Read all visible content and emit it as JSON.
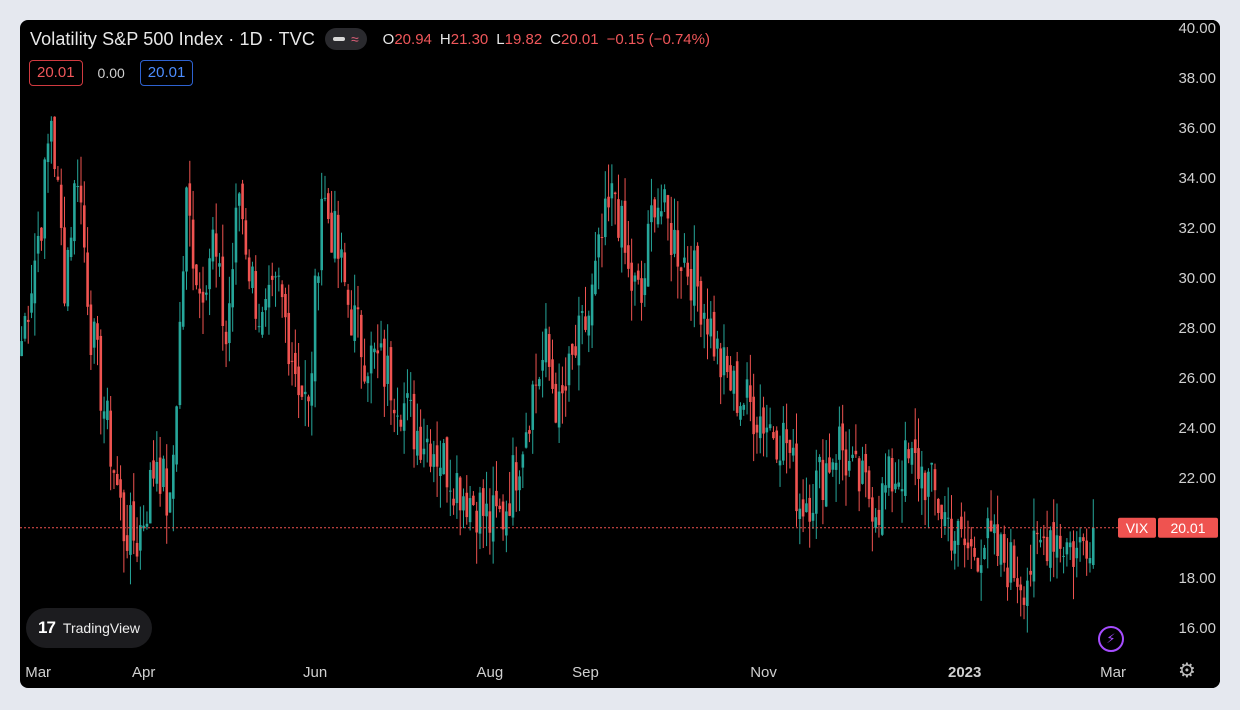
{
  "header": {
    "title": "Volatility S&P 500 Index · 1D · TVC",
    "ohlc": {
      "o_label": "O",
      "o_value": "20.94",
      "h_label": "H",
      "h_value": "21.30",
      "l_label": "L",
      "l_value": "19.82",
      "c_label": "C",
      "c_value": "20.01",
      "change": "−0.15 (−0.74%)"
    }
  },
  "badges": {
    "price": "20.01",
    "zero": "0.00",
    "value": "20.01"
  },
  "branding": {
    "logo_mark": "17",
    "logo_text": "TradingView"
  },
  "price_tag": {
    "symbol": "VIX",
    "value": "20.01"
  },
  "colors": {
    "up": "#26a69a",
    "down": "#ef5350",
    "background": "#000000",
    "grid_text": "#d0d0d0"
  },
  "chart_data": {
    "type": "candlestick",
    "title": "Volatility S&P 500 Index · 1D · TVC",
    "ylim": [
      15,
      40
    ],
    "yticks": [
      "40.00",
      "38.00",
      "36.00",
      "34.00",
      "32.00",
      "30.00",
      "28.00",
      "26.00",
      "24.00",
      "22.00",
      "20.00",
      "18.00",
      "16.00"
    ],
    "ytick_values": [
      40,
      38,
      36,
      34,
      32,
      30,
      28,
      26,
      24,
      22,
      20,
      18,
      16
    ],
    "xtick_labels": [
      "Mar",
      "Apr",
      "Jun",
      "Aug",
      "Sep",
      "Nov",
      "2023",
      "Mar"
    ],
    "xtick_index": [
      5,
      37,
      89,
      142,
      171,
      225,
      286,
      331
    ],
    "last_price": 20.01,
    "series_name": "VIX",
    "points": [
      [
        0,
        27.5
      ],
      [
        6,
        32.5
      ],
      [
        9,
        36.5
      ],
      [
        13,
        30.0
      ],
      [
        17,
        34.5
      ],
      [
        21,
        28.0
      ],
      [
        26,
        24.0
      ],
      [
        31,
        20.0
      ],
      [
        35,
        19.5
      ],
      [
        38,
        21.0
      ],
      [
        41,
        23.0
      ],
      [
        45,
        20.5
      ],
      [
        50,
        33.0
      ],
      [
        54,
        29.5
      ],
      [
        58,
        31.5
      ],
      [
        62,
        27.5
      ],
      [
        66,
        33.5
      ],
      [
        69,
        30.5
      ],
      [
        73,
        28.0
      ],
      [
        78,
        29.5
      ],
      [
        83,
        26.5
      ],
      [
        87,
        24.5
      ],
      [
        91,
        33.5
      ],
      [
        95,
        31.5
      ],
      [
        99,
        29.0
      ],
      [
        104,
        27.0
      ],
      [
        109,
        26.5
      ],
      [
        114,
        25.5
      ],
      [
        119,
        24.0
      ],
      [
        124,
        23.5
      ],
      [
        129,
        22.5
      ],
      [
        134,
        21.5
      ],
      [
        138,
        21.0
      ],
      [
        142,
        20.2
      ],
      [
        146,
        20.5
      ],
      [
        150,
        22.5
      ],
      [
        155,
        25.5
      ],
      [
        159,
        27.0
      ],
      [
        163,
        24.5
      ],
      [
        168,
        27.0
      ],
      [
        172,
        28.5
      ],
      [
        176,
        31.5
      ],
      [
        180,
        33.5
      ],
      [
        184,
        30.0
      ],
      [
        188,
        29.0
      ],
      [
        192,
        33.5
      ],
      [
        196,
        32.0
      ],
      [
        200,
        31.0
      ],
      [
        204,
        30.0
      ],
      [
        208,
        28.5
      ],
      [
        212,
        26.5
      ],
      [
        216,
        25.5
      ],
      [
        220,
        25.0
      ],
      [
        224,
        24.5
      ],
      [
        228,
        24.0
      ],
      [
        232,
        23.5
      ],
      [
        236,
        21.0
      ],
      [
        240,
        21.5
      ],
      [
        244,
        22.5
      ],
      [
        248,
        23.5
      ],
      [
        252,
        22.0
      ],
      [
        256,
        21.5
      ],
      [
        260,
        21.0
      ],
      [
        264,
        22.0
      ],
      [
        268,
        22.5
      ],
      [
        272,
        22.5
      ],
      [
        276,
        21.5
      ],
      [
        280,
        20.5
      ],
      [
        284,
        19.5
      ],
      [
        288,
        19.0
      ],
      [
        292,
        19.5
      ],
      [
        296,
        19.0
      ],
      [
        300,
        18.5
      ],
      [
        304,
        18.0
      ],
      [
        308,
        19.0
      ],
      [
        312,
        20.0
      ],
      [
        316,
        19.5
      ],
      [
        320,
        19.0
      ],
      [
        324,
        20.0
      ]
    ]
  }
}
